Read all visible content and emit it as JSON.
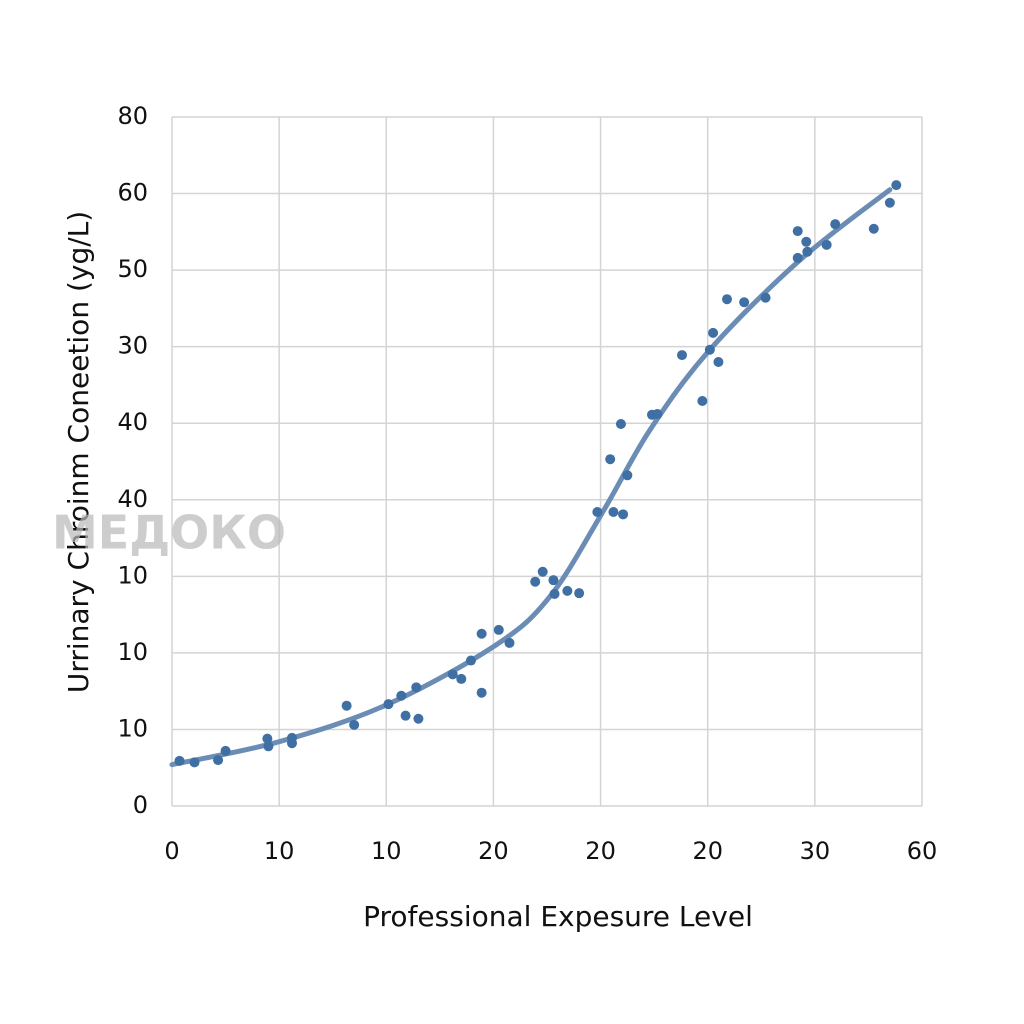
{
  "chart_data": {
    "type": "scatter",
    "xlabel": "Professional Expesure Level",
    "ylabel": "Urrinary Chroinm Coneetion (yg/L)",
    "watermark": "МЕДОКО",
    "xlim": [
      0,
      70
    ],
    "xticks": [
      0,
      10,
      {
        "value": 20,
        "label": "10"
      },
      {
        "value": 30,
        "label": "20"
      },
      {
        "value": 40,
        "label": "20"
      },
      {
        "value": 50,
        "label": "20"
      },
      {
        "value": 60,
        "label": "30"
      },
      {
        "value": 70,
        "label": "60"
      }
    ],
    "ylim": [
      0,
      90
    ],
    "yticks": [
      0,
      10,
      {
        "value": 20,
        "label": "10"
      },
      {
        "value": 30,
        "label": "10"
      },
      {
        "value": 40,
        "label": "40"
      },
      {
        "value": 50,
        "label": "40"
      },
      {
        "value": 60,
        "label": "30"
      },
      {
        "value": 70,
        "label": "50"
      },
      {
        "value": 80,
        "label": "60"
      },
      {
        "value": 90,
        "label": "80"
      }
    ],
    "grid": true,
    "color": "#3f6fa3",
    "x": [
      0.7,
      2.1,
      4.3,
      5.0,
      8.9,
      9.0,
      11.2,
      11.2,
      16.3,
      17.0,
      20.2,
      21.4,
      21.8,
      22.8,
      23.0,
      26.2,
      27.0,
      27.9,
      28.9,
      28.9,
      30.5,
      31.5,
      33.9,
      34.6,
      35.6,
      35.7,
      36.9,
      38.0,
      39.7,
      40.9,
      41.2,
      41.9,
      42.1,
      42.5,
      44.8,
      45.3,
      47.6,
      49.5,
      50.2,
      50.5,
      51.0,
      51.8,
      53.4,
      55.4,
      58.4,
      58.4,
      59.2,
      59.3,
      61.1,
      61.9,
      65.5,
      67.0,
      67.6
    ],
    "values": [
      5.9,
      5.7,
      6.0,
      7.2,
      8.8,
      7.8,
      8.9,
      8.2,
      13.1,
      10.6,
      13.3,
      14.4,
      11.8,
      15.5,
      11.4,
      17.2,
      16.6,
      19.0,
      22.5,
      14.8,
      23.0,
      21.3,
      29.3,
      30.6,
      29.5,
      27.7,
      28.1,
      27.8,
      38.4,
      45.3,
      38.4,
      49.9,
      38.1,
      43.2,
      51.1,
      51.2,
      58.9,
      52.9,
      59.6,
      61.8,
      58.0,
      66.2,
      65.8,
      66.4,
      75.1,
      71.6,
      73.7,
      72.4,
      73.3,
      76.0,
      75.4,
      78.8,
      81.1
    ],
    "fit": {
      "color": "#6b8db5",
      "x": [
        0,
        10,
        20,
        30.2,
        35.3,
        40.2,
        44.6,
        50.2,
        58.6,
        67
      ],
      "y": [
        5.4,
        8.4,
        13.2,
        21.0,
        27.4,
        38.4,
        49.1,
        59.6,
        71.3,
        80.5
      ]
    }
  }
}
